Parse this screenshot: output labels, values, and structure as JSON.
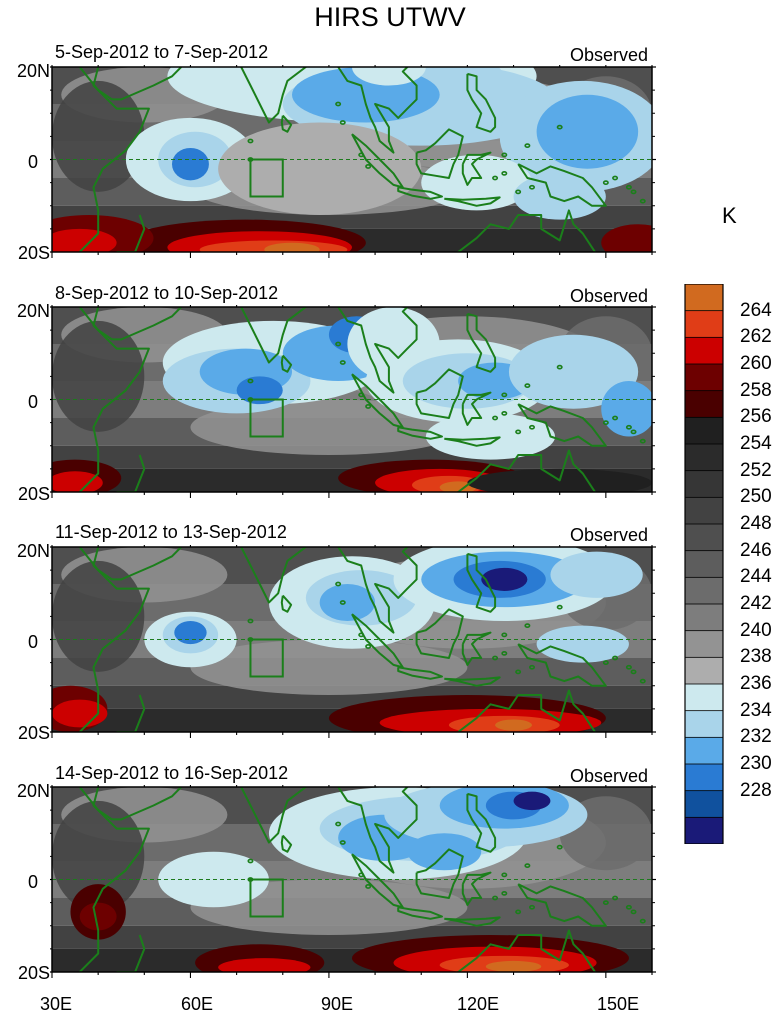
{
  "title": "HIRS UTWV",
  "panels": [
    {
      "date_range": "5-Sep-2012 to 7-Sep-2012",
      "label": "Observed"
    },
    {
      "date_range": "8-Sep-2012 to 10-Sep-2012",
      "label": "Observed"
    },
    {
      "date_range": "11-Sep-2012 to 13-Sep-2012",
      "label": "Observed"
    },
    {
      "date_range": "14-Sep-2012 to 16-Sep-2012",
      "label": "Observed"
    }
  ],
  "lat_ticks": [
    "20N",
    "0",
    "20S"
  ],
  "lon_ticks": [
    "30E",
    "60E",
    "90E",
    "120E",
    "150E"
  ],
  "colorbar": {
    "unit": "K",
    "levels": [
      "264",
      "262",
      "260",
      "258",
      "256",
      "254",
      "252",
      "250",
      "248",
      "246",
      "244",
      "242",
      "240",
      "238",
      "236",
      "234",
      "232",
      "230",
      "228"
    ],
    "colors": [
      "#d16a1f",
      "#e03d17",
      "#cc0000",
      "#6d0000",
      "#4a0000",
      "#202020",
      "#2b2b2b",
      "#363636",
      "#424242",
      "#4f4f4f",
      "#5d5d5d",
      "#6c6c6c",
      "#7d7d7d",
      "#939393",
      "#adadad",
      "#cde9ee",
      "#a9d4ea",
      "#5aaae8",
      "#2a7bd3",
      "#10519e",
      "#1a1a78"
    ]
  }
}
